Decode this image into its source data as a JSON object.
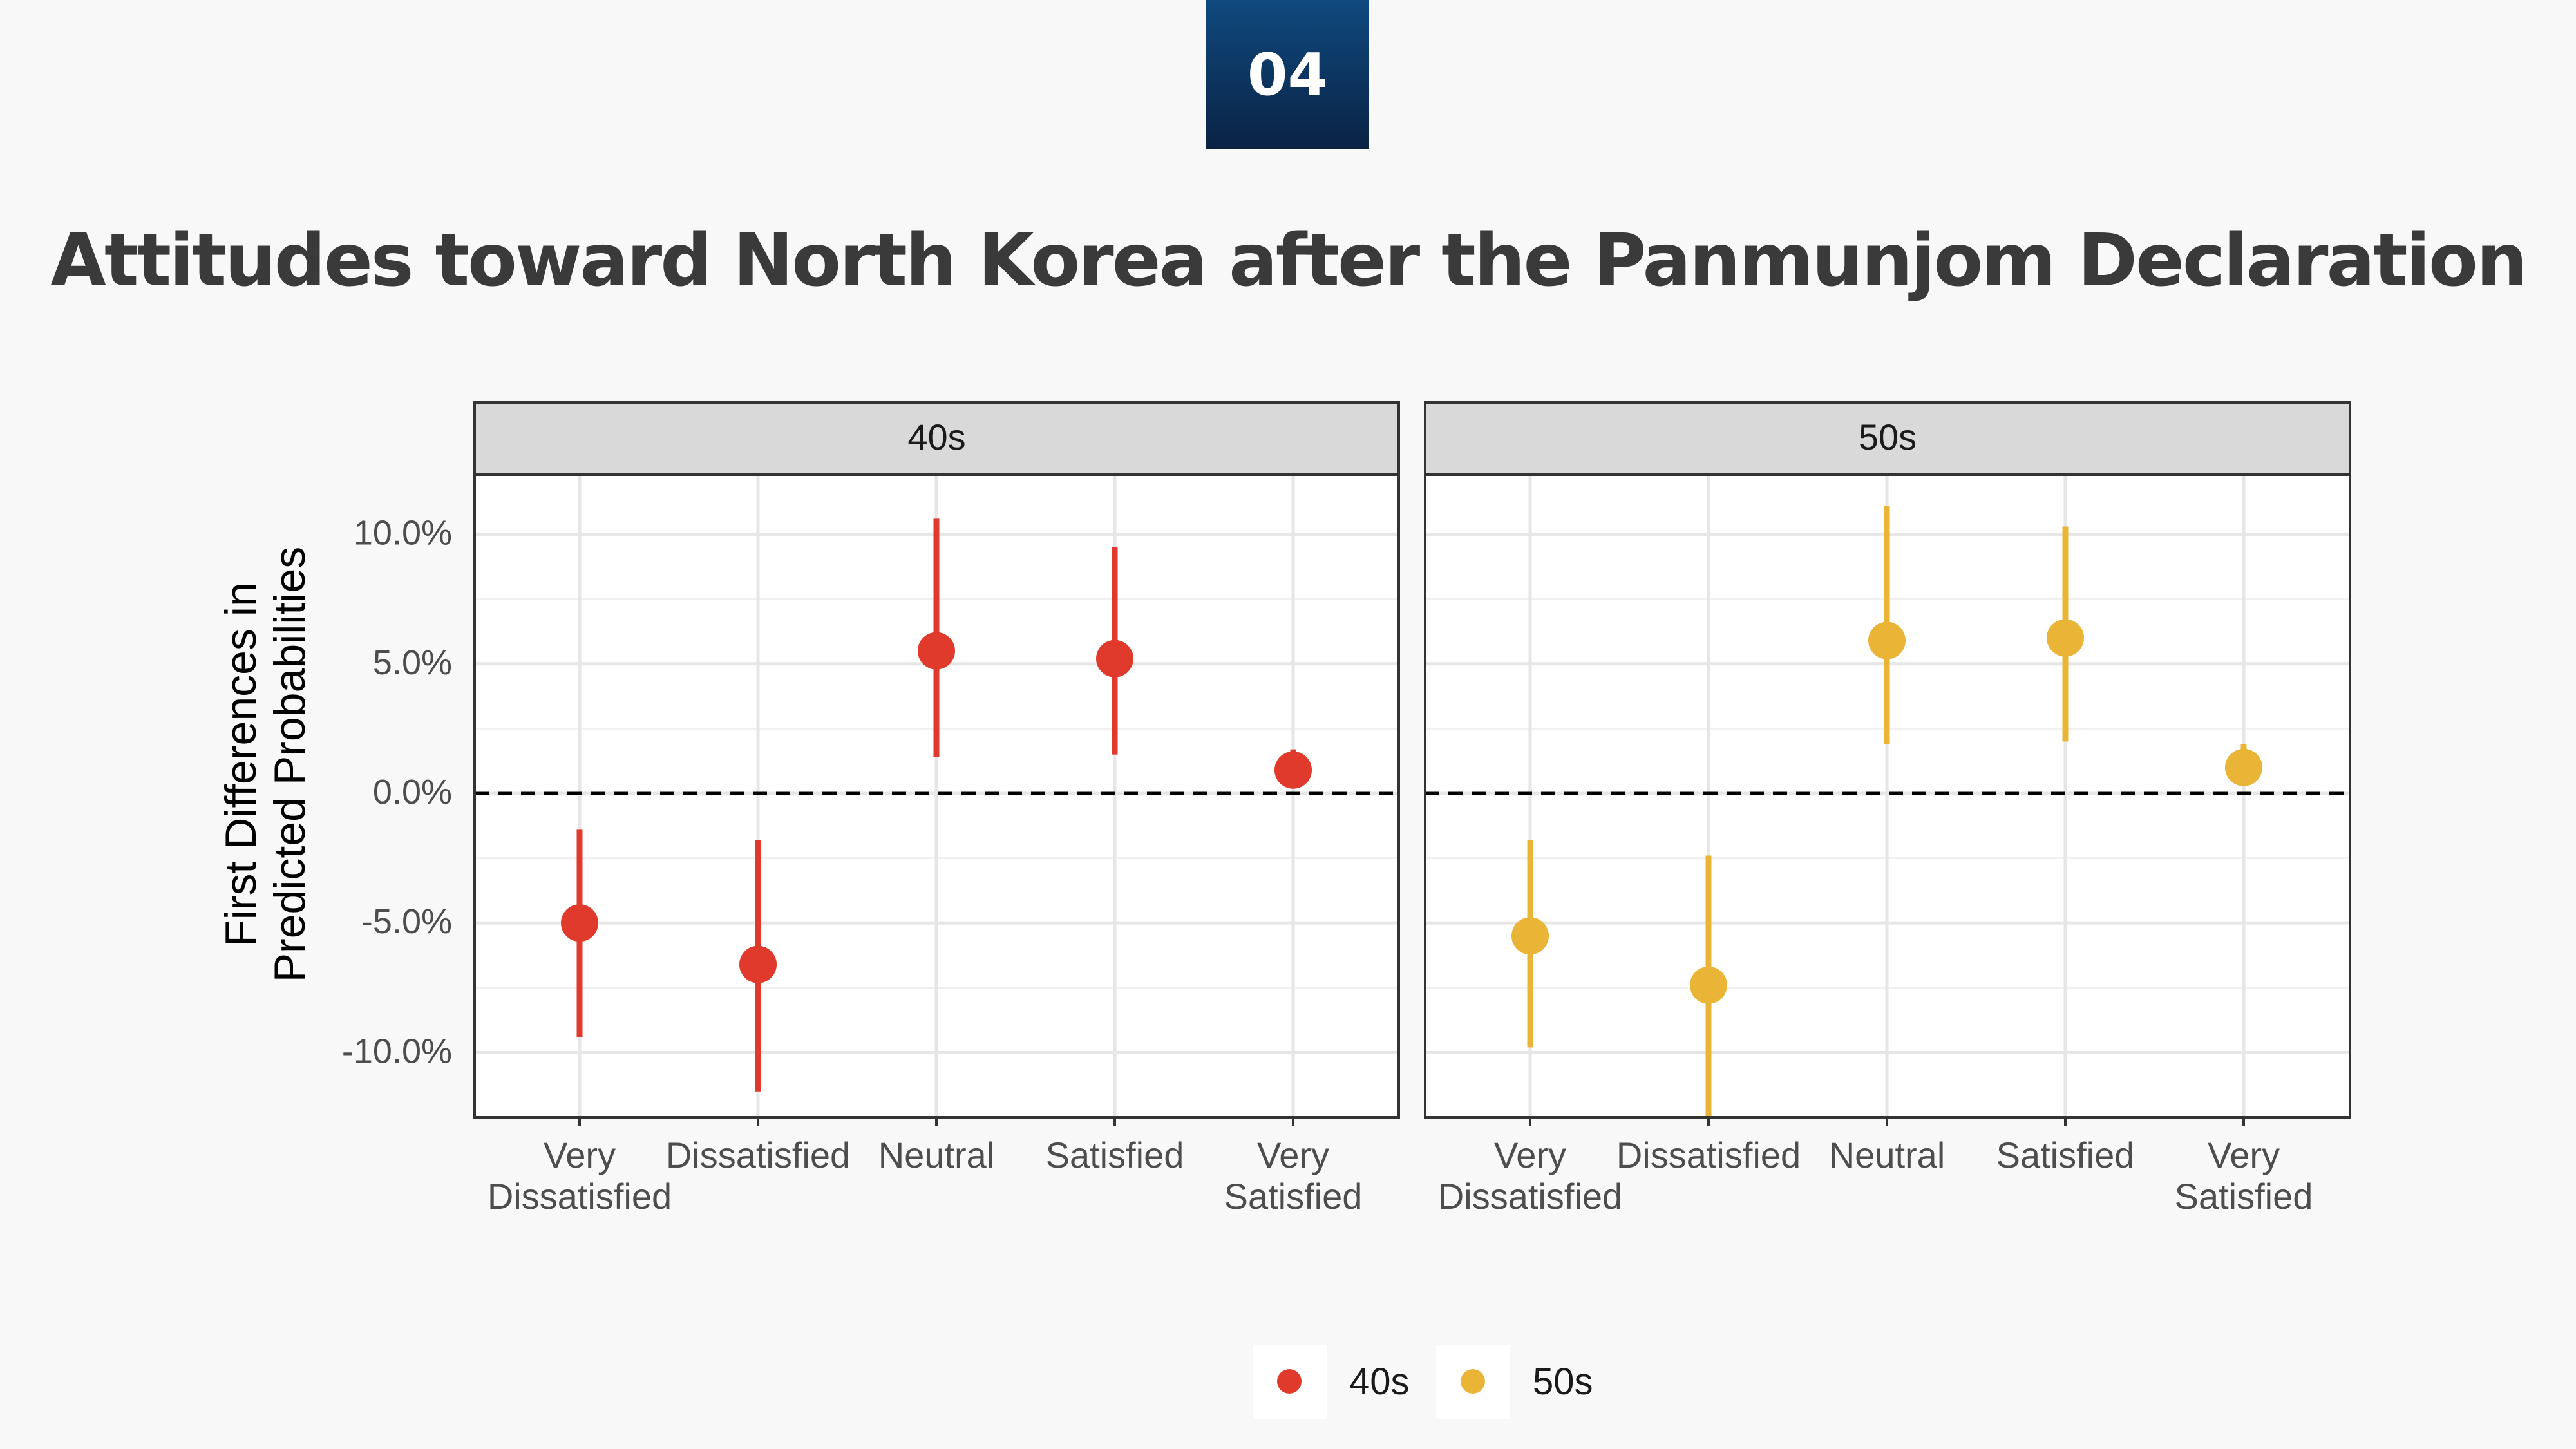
{
  "badge": "04",
  "title": "Attitudes toward North Korea after the Panmunjom Declaration",
  "colors": {
    "40s": "#e03a2c",
    "50s": "#eab437",
    "grid": "#e6e6e6",
    "strip": "#d9d9d9",
    "zero_line": "#000000"
  },
  "chart_data": {
    "type": "scatter",
    "subtype": "point-range (faceted)",
    "ylabel": [
      "First Differences in",
      "Predicted Probabilities"
    ],
    "xlabel": "",
    "ylim": [
      -0.125,
      0.123
    ],
    "yticks": [
      0.1,
      0.05,
      0.0,
      -0.05,
      -0.1
    ],
    "ytick_labels": [
      "10.0%",
      "5.0%",
      "0.0%",
      "-5.0%",
      "-10.0%"
    ],
    "categories": [
      "Very Dissatisfied",
      "Dissatisfied",
      "Neutral",
      "Satisfied",
      "Very Satisfied"
    ],
    "category_labels": [
      [
        "Very",
        "Dissatisfied"
      ],
      [
        "Dissatisfied"
      ],
      [
        "Neutral"
      ],
      [
        "Satisfied"
      ],
      [
        "Very",
        "Satisfied"
      ]
    ],
    "zero_line": {
      "value": 0,
      "style": "dashed"
    },
    "grid": true,
    "legend_position": "bottom",
    "facets": [
      {
        "label": "40s",
        "series": "40s",
        "values": [
          -0.05,
          -0.066,
          0.055,
          0.052,
          0.009
        ],
        "lower": [
          -0.094,
          -0.115,
          0.014,
          0.015,
          0.006
        ],
        "upper": [
          -0.014,
          -0.018,
          0.106,
          0.095,
          0.017
        ]
      },
      {
        "label": "50s",
        "series": "50s",
        "values": [
          -0.055,
          -0.074,
          0.059,
          0.06,
          0.01
        ],
        "lower": [
          -0.098,
          -0.125,
          0.019,
          0.02,
          0.006
        ],
        "upper": [
          -0.018,
          -0.024,
          0.111,
          0.103,
          0.019
        ]
      }
    ],
    "legend": [
      {
        "label": "40s",
        "color": "#e03a2c"
      },
      {
        "label": "50s",
        "color": "#eab437"
      }
    ]
  }
}
